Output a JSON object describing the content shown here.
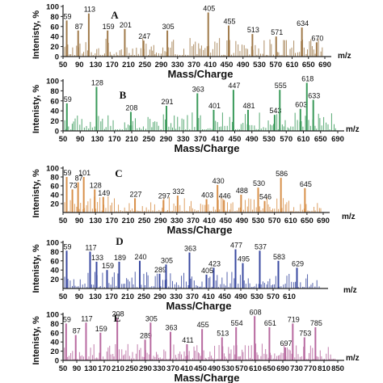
{
  "chart_data": [
    {
      "type": "bar",
      "panel": "A",
      "color": "#a07a4a",
      "ylabel": "Intenisty, %",
      "xlabel": "Mass/Charge",
      "unit_label": "m/z",
      "xlim": [
        50,
        690
      ],
      "ylim": [
        0,
        100
      ],
      "x_ticks": [
        50,
        90,
        130,
        170,
        210,
        250,
        290,
        330,
        370,
        410,
        450,
        490,
        530,
        570,
        610,
        650,
        690
      ],
      "y_ticks": [
        0,
        20,
        40,
        60,
        80,
        100
      ],
      "labeled_peaks": [
        {
          "mz": 59,
          "intensity": 72,
          "label": "59"
        },
        {
          "mz": 87,
          "intensity": 52,
          "label": "87"
        },
        {
          "mz": 113,
          "intensity": 86,
          "label": "113"
        },
        {
          "mz": 159,
          "intensity": 52,
          "label": "159"
        },
        {
          "mz": 201,
          "intensity": 55,
          "label": "201"
        },
        {
          "mz": 247,
          "intensity": 32,
          "label": "247"
        },
        {
          "mz": 305,
          "intensity": 52,
          "label": "305"
        },
        {
          "mz": 405,
          "intensity": 88,
          "label": "405"
        },
        {
          "mz": 455,
          "intensity": 62,
          "label": "455"
        },
        {
          "mz": 513,
          "intensity": 45,
          "label": "513"
        },
        {
          "mz": 571,
          "intensity": 40,
          "label": "571"
        },
        {
          "mz": 634,
          "intensity": 58,
          "label": "634"
        },
        {
          "mz": 670,
          "intensity": 28,
          "label": "670"
        }
      ]
    },
    {
      "type": "bar",
      "panel": "B",
      "color": "#3a9a5a",
      "ylabel": "Intenisty, %",
      "xlabel": "Mass/Charge",
      "unit_label": "m/z",
      "xlim": [
        50,
        690
      ],
      "ylim": [
        0,
        100
      ],
      "x_ticks": [
        50,
        90,
        130,
        170,
        210,
        250,
        290,
        330,
        370,
        410,
        450,
        490,
        530,
        570,
        610,
        650,
        690
      ],
      "y_ticks": [
        0,
        20,
        40,
        60,
        80,
        100
      ],
      "labeled_peaks": [
        {
          "mz": 59,
          "intensity": 55,
          "label": "59"
        },
        {
          "mz": 128,
          "intensity": 88,
          "label": "128"
        },
        {
          "mz": 208,
          "intensity": 38,
          "label": "208"
        },
        {
          "mz": 291,
          "intensity": 50,
          "label": "291"
        },
        {
          "mz": 363,
          "intensity": 75,
          "label": "363"
        },
        {
          "mz": 401,
          "intensity": 42,
          "label": "401"
        },
        {
          "mz": 447,
          "intensity": 82,
          "label": "447"
        },
        {
          "mz": 481,
          "intensity": 42,
          "label": "481"
        },
        {
          "mz": 543,
          "intensity": 32,
          "label": "543"
        },
        {
          "mz": 555,
          "intensity": 82,
          "label": "555"
        },
        {
          "mz": 603,
          "intensity": 44,
          "label": "603"
        },
        {
          "mz": 618,
          "intensity": 96,
          "label": "618"
        },
        {
          "mz": 633,
          "intensity": 62,
          "label": "633"
        }
      ]
    },
    {
      "type": "bar",
      "panel": "C",
      "color": "#d8904a",
      "ylabel": "Intenisty, %",
      "xlabel": "Mass/Charge",
      "unit_label": "m/z",
      "xlim": [
        50,
        690
      ],
      "ylim": [
        0,
        100
      ],
      "x_ticks": [
        50,
        90,
        130,
        170,
        210,
        250,
        290,
        330,
        370,
        410,
        450,
        490,
        530,
        570,
        610,
        650,
        690
      ],
      "y_ticks": [
        20,
        40,
        60,
        80,
        100
      ],
      "labeled_peaks": [
        {
          "mz": 59,
          "intensity": 80,
          "label": "59"
        },
        {
          "mz": 73,
          "intensity": 52,
          "label": "73"
        },
        {
          "mz": 87,
          "intensity": 68,
          "label": "87"
        },
        {
          "mz": 101,
          "intensity": 80,
          "label": "101"
        },
        {
          "mz": 128,
          "intensity": 52,
          "label": "128"
        },
        {
          "mz": 149,
          "intensity": 35,
          "label": "149"
        },
        {
          "mz": 227,
          "intensity": 32,
          "label": "227"
        },
        {
          "mz": 297,
          "intensity": 28,
          "label": "297"
        },
        {
          "mz": 332,
          "intensity": 38,
          "label": "332"
        },
        {
          "mz": 403,
          "intensity": 30,
          "label": "403"
        },
        {
          "mz": 430,
          "intensity": 62,
          "label": "430"
        },
        {
          "mz": 446,
          "intensity": 28,
          "label": "446"
        },
        {
          "mz": 488,
          "intensity": 40,
          "label": "488"
        },
        {
          "mz": 530,
          "intensity": 56,
          "label": "530"
        },
        {
          "mz": 546,
          "intensity": 26,
          "label": "546"
        },
        {
          "mz": 586,
          "intensity": 78,
          "label": "586"
        },
        {
          "mz": 645,
          "intensity": 55,
          "label": "645"
        }
      ]
    },
    {
      "type": "bar",
      "panel": "D",
      "color": "#3a4aa0",
      "ylabel": "Intenisty, %",
      "xlabel": "Mass/Charge",
      "unit_label": "m/z",
      "xlim": [
        50,
        690
      ],
      "ylim": [
        0,
        100
      ],
      "x_ticks": [
        50,
        90,
        130,
        170,
        210,
        250,
        290,
        330,
        370,
        410,
        450,
        490,
        530,
        570,
        610
      ],
      "y_ticks": [
        20,
        40,
        60,
        80,
        100
      ],
      "labeled_peaks": [
        {
          "mz": 59,
          "intensity": 82,
          "label": "59"
        },
        {
          "mz": 117,
          "intensity": 80,
          "label": "117"
        },
        {
          "mz": 133,
          "intensity": 58,
          "label": "133"
        },
        {
          "mz": 159,
          "intensity": 40,
          "label": "159"
        },
        {
          "mz": 189,
          "intensity": 58,
          "label": "189"
        },
        {
          "mz": 240,
          "intensity": 60,
          "label": "240"
        },
        {
          "mz": 289,
          "intensity": 32,
          "label": "289"
        },
        {
          "mz": 305,
          "intensity": 52,
          "label": "305"
        },
        {
          "mz": 363,
          "intensity": 78,
          "label": "363"
        },
        {
          "mz": 405,
          "intensity": 30,
          "label": "405"
        },
        {
          "mz": 423,
          "intensity": 45,
          "label": "423"
        },
        {
          "mz": 477,
          "intensity": 85,
          "label": "477"
        },
        {
          "mz": 495,
          "intensity": 55,
          "label": "495"
        },
        {
          "mz": 537,
          "intensity": 82,
          "label": "537"
        },
        {
          "mz": 583,
          "intensity": 60,
          "label": "583"
        },
        {
          "mz": 629,
          "intensity": 45,
          "label": "629"
        }
      ]
    },
    {
      "type": "bar",
      "panel": "E",
      "color": "#b86aa0",
      "ylabel": "Intenisty, %",
      "xlabel": "Mass/Charge",
      "unit_label": "m/z",
      "xlim": [
        50,
        850
      ],
      "ylim": [
        0,
        100
      ],
      "x_ticks": [
        50,
        90,
        130,
        170,
        210,
        250,
        290,
        330,
        370,
        410,
        450,
        490,
        530,
        570,
        610,
        650,
        690,
        730,
        770,
        810,
        850
      ],
      "y_ticks": [
        0,
        20,
        40,
        60,
        80,
        100
      ],
      "labeled_peaks": [
        {
          "mz": 59,
          "intensity": 80,
          "label": "59"
        },
        {
          "mz": 87,
          "intensity": 55,
          "label": "87"
        },
        {
          "mz": 117,
          "intensity": 82,
          "label": "117"
        },
        {
          "mz": 159,
          "intensity": 60,
          "label": "159"
        },
        {
          "mz": 208,
          "intensity": 92,
          "label": "208"
        },
        {
          "mz": 289,
          "intensity": 45,
          "label": "289"
        },
        {
          "mz": 305,
          "intensity": 82,
          "label": "305"
        },
        {
          "mz": 363,
          "intensity": 62,
          "label": "363"
        },
        {
          "mz": 411,
          "intensity": 35,
          "label": "411"
        },
        {
          "mz": 455,
          "intensity": 68,
          "label": "455"
        },
        {
          "mz": 513,
          "intensity": 50,
          "label": "513"
        },
        {
          "mz": 554,
          "intensity": 72,
          "label": "554"
        },
        {
          "mz": 608,
          "intensity": 96,
          "label": "608"
        },
        {
          "mz": 651,
          "intensity": 72,
          "label": "651"
        },
        {
          "mz": 697,
          "intensity": 28,
          "label": "697"
        },
        {
          "mz": 719,
          "intensity": 80,
          "label": "719"
        },
        {
          "mz": 753,
          "intensity": 50,
          "label": "753"
        },
        {
          "mz": 785,
          "intensity": 72,
          "label": "785"
        }
      ]
    }
  ]
}
